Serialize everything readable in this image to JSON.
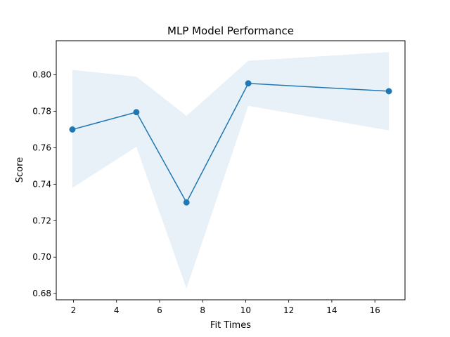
{
  "chart_data": {
    "type": "line",
    "title": "MLP Model Performance",
    "xlabel": "Fit Times",
    "ylabel": "Score",
    "xlim": [
      1.2,
      17.4
    ],
    "ylim": [
      0.6766,
      0.8187
    ],
    "xticks": [
      2,
      4,
      6,
      8,
      10,
      12,
      14,
      16
    ],
    "xtick_labels": [
      "2",
      "4",
      "6",
      "8",
      "10",
      "12",
      "14",
      "16"
    ],
    "yticks": [
      0.68,
      0.7,
      0.72,
      0.74,
      0.76,
      0.78,
      0.8
    ],
    "ytick_labels": [
      "0.68",
      "0.70",
      "0.72",
      "0.74",
      "0.76",
      "0.78",
      "0.80"
    ],
    "grid": false,
    "series": [
      {
        "x": [
          1.95,
          4.92,
          7.25,
          10.12,
          16.65
        ],
        "values": [
          0.77,
          0.7795,
          0.73,
          0.7953,
          0.791
        ],
        "upper": [
          0.8027,
          0.799,
          0.7775,
          0.8077,
          0.8125
        ],
        "lower": [
          0.738,
          0.7605,
          0.6828,
          0.783,
          0.7695
        ],
        "color": "#1f77b4",
        "band_color": "#1f77b4"
      }
    ]
  }
}
